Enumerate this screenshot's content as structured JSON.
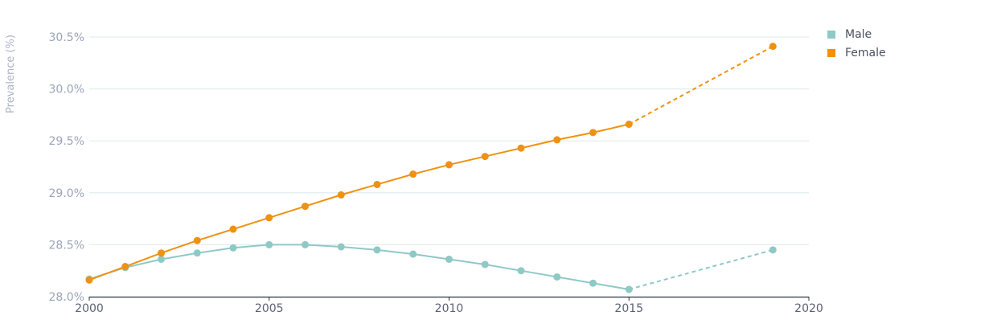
{
  "chart_data": {
    "type": "line",
    "title": "",
    "xlabel": "",
    "ylabel": "Prevalence (%)",
    "xlim": [
      2000,
      2020
    ],
    "ylim": [
      28.0,
      30.5
    ],
    "x_ticks": [
      2000,
      2005,
      2010,
      2015,
      2020
    ],
    "x_tick_labels": [
      "2000",
      "2005",
      "2010",
      "2015",
      "2020"
    ],
    "y_ticks": [
      28.0,
      28.5,
      29.0,
      29.5,
      30.0,
      30.5
    ],
    "y_tick_labels": [
      "28.0%",
      "28.5%",
      "29.0%",
      "29.5%",
      "30.0%",
      "30.5%"
    ],
    "grid": true,
    "legend_position": "top-right",
    "series": [
      {
        "name": "Male",
        "color": "#8ec9c6",
        "solid": {
          "x": [
            2000,
            2001,
            2002,
            2003,
            2004,
            2005,
            2006,
            2007,
            2008,
            2009,
            2010,
            2011,
            2012,
            2013,
            2014,
            2015
          ],
          "y": [
            28.17,
            28.28,
            28.36,
            28.42,
            28.47,
            28.5,
            28.5,
            28.48,
            28.45,
            28.41,
            28.36,
            28.31,
            28.25,
            28.19,
            28.13,
            28.07
          ]
        },
        "dashed": {
          "x": [
            2015,
            2019
          ],
          "y": [
            28.07,
            28.45
          ]
        }
      },
      {
        "name": "Female",
        "color": "#f0910f",
        "solid": {
          "x": [
            2000,
            2001,
            2002,
            2003,
            2004,
            2005,
            2006,
            2007,
            2008,
            2009,
            2010,
            2011,
            2012,
            2013,
            2014,
            2015
          ],
          "y": [
            28.16,
            28.29,
            28.42,
            28.54,
            28.65,
            28.76,
            28.87,
            28.98,
            29.08,
            29.18,
            29.27,
            29.35,
            29.43,
            29.51,
            29.58,
            29.66
          ]
        },
        "dashed": {
          "x": [
            2015,
            2019
          ],
          "y": [
            29.66,
            30.41
          ]
        }
      }
    ]
  }
}
